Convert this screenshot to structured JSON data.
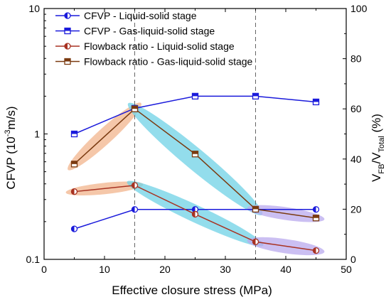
{
  "chart_data": {
    "type": "line",
    "xlabel": "Effective closure stress (MPa)",
    "ylabel_left": {
      "main": "CFVP (10",
      "sup": "-3",
      "tail": "m/s)"
    },
    "ylabel_right": {
      "v1": "V",
      "sub1": "FB",
      "slash": "/V",
      "sub2": "Total",
      "unit": " (%)"
    },
    "x_axis": {
      "range": [
        0,
        50
      ],
      "ticks": [
        0,
        10,
        20,
        30,
        40,
        50
      ],
      "tick_labels": [
        "0",
        "10",
        "20",
        "30",
        "40",
        "50"
      ]
    },
    "y_left": {
      "scale": "log",
      "range": [
        0.1,
        10
      ],
      "ticks": [
        0.1,
        1,
        10
      ],
      "tick_labels": [
        "0.1",
        "1",
        "10"
      ]
    },
    "y_right": {
      "scale": "linear",
      "range": [
        0,
        100
      ],
      "ticks": [
        0,
        20,
        40,
        60,
        80,
        100
      ],
      "tick_labels": [
        "0",
        "20",
        "40",
        "60",
        "80",
        "100"
      ]
    },
    "vertical_reference_lines_x": [
      15,
      35
    ],
    "legend": {
      "position": "top-left"
    },
    "series": [
      {
        "name": "CFVP - Liquid-solid stage",
        "axis": "left",
        "color": "#1a1adb",
        "marker": "circle-half",
        "x": [
          5,
          15,
          25,
          35,
          45
        ],
        "y": [
          0.175,
          0.25,
          0.25,
          0.25,
          0.25
        ]
      },
      {
        "name": "CFVP - Gas-liquid-solid stage",
        "axis": "left",
        "color": "#1a1adb",
        "marker": "square-half",
        "x": [
          5,
          15,
          25,
          35,
          45
        ],
        "y": [
          1.0,
          1.6,
          2.0,
          2.0,
          1.8
        ]
      },
      {
        "name": "Flowback ratio - Liquid-solid stage",
        "axis": "right",
        "color": "#a83222",
        "marker": "circle-half",
        "x": [
          5,
          15,
          25,
          35,
          45
        ],
        "y": [
          27,
          29.5,
          18,
          7,
          3.5
        ]
      },
      {
        "name": "Flowback ratio - Gas-liquid-solid stage",
        "axis": "right",
        "color": "#7a3a10",
        "marker": "square-half",
        "x": [
          5,
          15,
          25,
          35,
          45
        ],
        "y": [
          38,
          60,
          42,
          20,
          16.5
        ]
      }
    ],
    "highlight_colors": {
      "orange": "#f2b48c",
      "cyan": "#6fd1e6",
      "purple": "#b9a9ee"
    }
  }
}
